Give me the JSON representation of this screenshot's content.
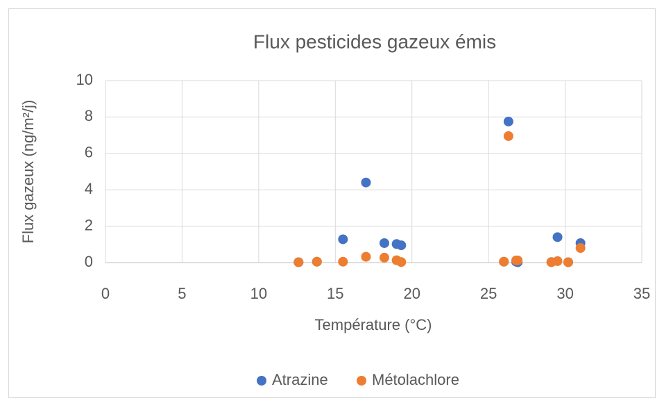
{
  "chart_data": {
    "type": "scatter",
    "title": "Flux pesticides gazeux émis",
    "x_label": "Température (°C)",
    "y_label": "Flux gazeux (ng/m²/j)",
    "x": [
      12.6,
      13.8,
      15.5,
      17,
      18.2,
      19,
      19.3,
      26,
      26.3,
      26.8,
      26.9,
      29.1,
      29.5,
      30.2,
      31
    ],
    "series": [
      {
        "name": "Atrazine",
        "color": "#4472c4",
        "values": [
          0.02,
          0.05,
          1.28,
          4.4,
          1.07,
          1.02,
          0.95,
          0.05,
          7.75,
          0.05,
          0.02,
          0.03,
          1.4,
          0.02,
          1.07
        ]
      },
      {
        "name": "Métolachlore",
        "color": "#ed7d31",
        "values": [
          0.02,
          0.05,
          0.05,
          0.32,
          0.27,
          0.13,
          0.03,
          0.05,
          6.95,
          0.12,
          0.12,
          0.02,
          0.08,
          0.02,
          0.8
        ]
      }
    ],
    "xlim": [
      0,
      35
    ],
    "xticks": [
      0,
      5,
      10,
      15,
      20,
      25,
      30,
      35
    ],
    "ylim": [
      0,
      10
    ],
    "yticks": [
      0,
      2,
      4,
      6,
      8,
      10
    ],
    "grid": true,
    "legend": "bottom"
  }
}
